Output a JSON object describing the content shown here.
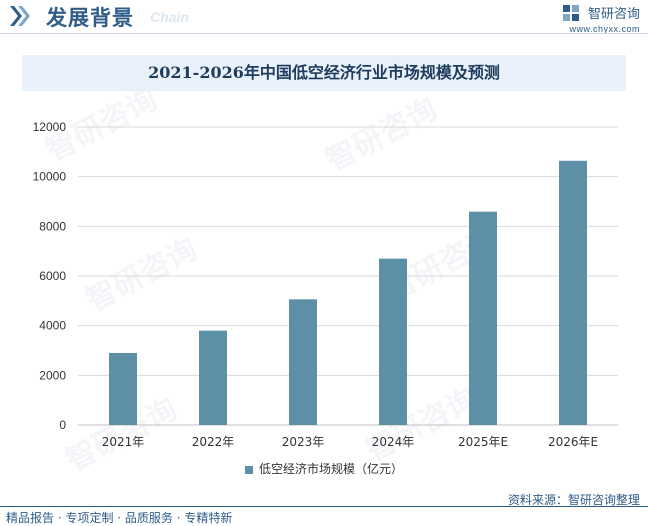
{
  "header": {
    "title": "发展背景",
    "subtitle": "Chain",
    "brand_name": "智研咨询",
    "brand_url": "www.chyxx.com"
  },
  "chart_data": {
    "type": "bar",
    "title": "2021-2026年中国低空经济行业市场规模及预测",
    "categories": [
      "2021年",
      "2022年",
      "2023年",
      "2024年",
      "2025年E",
      "2026年E"
    ],
    "series": [
      {
        "name": "低空经济市场规模（亿元）",
        "values": [
          2900,
          3800,
          5060,
          6700,
          8590,
          10640
        ],
        "color": "#5d8fa7"
      }
    ],
    "ylim": [
      0,
      12000
    ],
    "yticks": [
      0,
      2000,
      4000,
      6000,
      8000,
      10000,
      12000
    ],
    "grid": true,
    "legend_position": "bottom"
  },
  "footer": {
    "left": "精品报告 · 专项定制 · 品质服务 · 专精特新",
    "right": "资料来源：智研咨询整理"
  },
  "watermark_text": "智研咨询"
}
